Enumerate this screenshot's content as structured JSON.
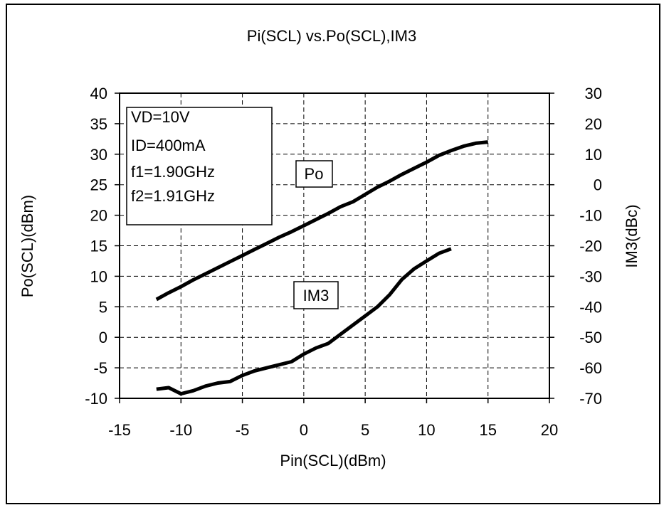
{
  "chart_data": {
    "type": "line",
    "title": "Pi(SCL) vs.Po(SCL),IM3",
    "xlabel": "Pin(SCL)(dBm)",
    "ylabel": "Po(SCL)(dBm)",
    "y2label": "IM3(dBc)",
    "xlim": [
      -15,
      20
    ],
    "ylim": [
      -10,
      40
    ],
    "y2lim": [
      -70,
      30
    ],
    "x_ticks": [
      -15,
      -10,
      -5,
      0,
      5,
      10,
      15,
      20
    ],
    "y_ticks": [
      -10,
      -5,
      0,
      5,
      10,
      15,
      20,
      25,
      30,
      35,
      40
    ],
    "y2_ticks": [
      -70,
      -60,
      -50,
      -40,
      -30,
      -20,
      -10,
      0,
      10,
      20,
      30
    ],
    "grid": true,
    "conditions": [
      "VD=10V",
      "ID=400mA",
      "f1=1.90GHz",
      "f2=1.91GHz"
    ],
    "series": [
      {
        "name": "Po",
        "axis": "left",
        "color": "#000000",
        "x": [
          -12,
          -11,
          -10,
          -9,
          -8,
          -7,
          -6,
          -5,
          -4,
          -3,
          -2,
          -1,
          0,
          1,
          2,
          3,
          4,
          5,
          6,
          7,
          8,
          9,
          10,
          11,
          12,
          13,
          14,
          15
        ],
        "y": [
          6.2,
          7.3,
          8.3,
          9.4,
          10.4,
          11.4,
          12.4,
          13.4,
          14.4,
          15.4,
          16.4,
          17.3,
          18.3,
          19.3,
          20.3,
          21.4,
          22.2,
          23.4,
          24.6,
          25.6,
          26.7,
          27.7,
          28.7,
          29.8,
          30.6,
          31.3,
          31.8,
          32.0
        ]
      },
      {
        "name": "IM3",
        "axis": "right",
        "color": "#000000",
        "x": [
          -12,
          -11,
          -10,
          -9,
          -8,
          -7,
          -6,
          -5,
          -4,
          -3,
          -2,
          -1,
          0,
          1,
          2,
          3,
          4,
          5,
          6,
          7,
          8,
          9,
          10,
          11,
          12
        ],
        "y": [
          -67,
          -66.5,
          -68.5,
          -67.5,
          -66,
          -65,
          -64.5,
          -62.5,
          -61,
          -60,
          -59,
          -58,
          -55.5,
          -53.5,
          -52,
          -49,
          -46,
          -43,
          -40,
          -36,
          -31,
          -27.5,
          -25,
          -22.5,
          -21
        ]
      }
    ]
  }
}
